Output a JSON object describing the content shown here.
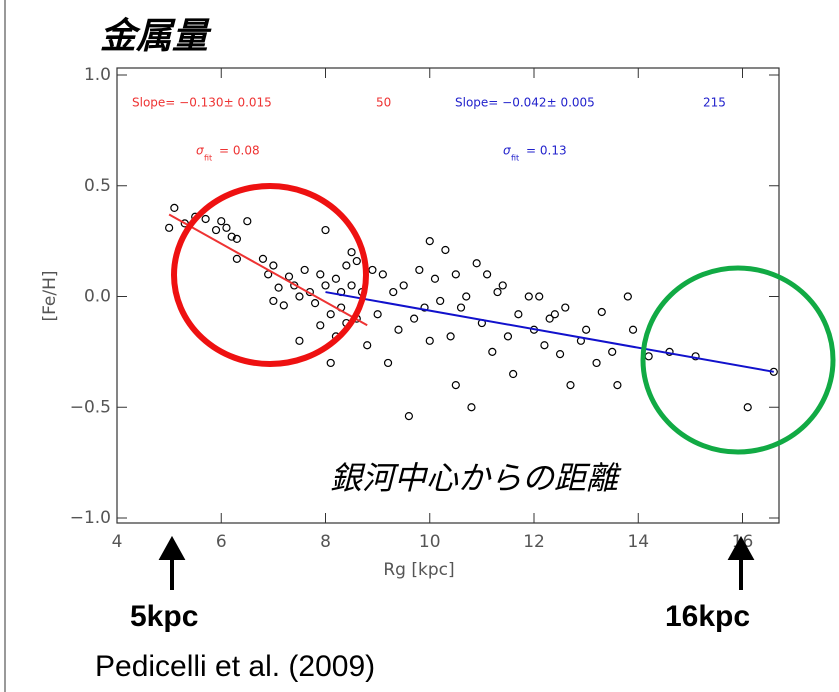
{
  "chart_data": {
    "type": "scatter",
    "title": "金属量",
    "x_label": "Rg [kpc]",
    "y_label": "[Fe/H]",
    "xlim": [
      4,
      16.7
    ],
    "ylim": [
      -1.0,
      1.0
    ],
    "xticks": [
      4,
      6,
      8,
      10,
      12,
      14,
      16
    ],
    "yticks": [
      {
        "value": 1.0,
        "label": "1.0"
      },
      {
        "value": 0.5,
        "label": "0.5"
      },
      {
        "value": 0.0,
        "label": "0.0"
      },
      {
        "value": -0.5,
        "label": "−0.5"
      },
      {
        "value": -1.0,
        "label": "−1.0"
      }
    ],
    "color": "#000000",
    "x": [
      5.0,
      5.1,
      5.3,
      5.5,
      5.7,
      5.9,
      6.0,
      6.1,
      6.2,
      6.3,
      6.3,
      6.5,
      6.8,
      6.9,
      7.0,
      7.1,
      7.0,
      7.2,
      7.3,
      7.4,
      7.5,
      7.5,
      7.6,
      7.7,
      7.8,
      7.9,
      7.9,
      8.0,
      8.0,
      8.1,
      8.1,
      8.2,
      8.2,
      8.3,
      8.3,
      8.4,
      8.4,
      8.5,
      8.5,
      8.6,
      8.6,
      8.7,
      8.8,
      8.9,
      9.0,
      9.1,
      9.2,
      9.3,
      9.4,
      9.5,
      9.6,
      9.7,
      9.8,
      9.9,
      10.0,
      10.0,
      10.1,
      10.2,
      10.3,
      10.4,
      10.5,
      10.5,
      10.6,
      10.7,
      10.8,
      10.9,
      11.0,
      11.1,
      11.2,
      11.3,
      11.4,
      11.5,
      11.6,
      11.7,
      11.9,
      12.0,
      12.1,
      12.2,
      12.3,
      12.4,
      12.5,
      12.6,
      12.7,
      12.9,
      13.0,
      13.2,
      13.3,
      13.5,
      13.6,
      13.8,
      13.9,
      14.2,
      14.6,
      15.1,
      16.1,
      16.6
    ],
    "values": [
      0.31,
      0.4,
      0.33,
      0.36,
      0.35,
      0.3,
      0.34,
      0.31,
      0.27,
      0.26,
      0.17,
      0.34,
      0.17,
      0.1,
      0.14,
      0.04,
      -0.02,
      -0.04,
      0.09,
      0.05,
      0.0,
      -0.2,
      0.12,
      0.02,
      -0.03,
      0.1,
      -0.13,
      0.3,
      0.05,
      -0.08,
      -0.3,
      0.08,
      -0.18,
      0.02,
      -0.05,
      0.14,
      -0.12,
      0.2,
      0.05,
      -0.1,
      0.16,
      0.02,
      -0.22,
      0.12,
      -0.08,
      0.1,
      -0.3,
      0.02,
      -0.15,
      0.05,
      -0.54,
      -0.1,
      0.12,
      -0.05,
      0.25,
      -0.2,
      0.08,
      -0.02,
      0.21,
      -0.18,
      0.1,
      -0.4,
      -0.05,
      0.0,
      -0.5,
      0.15,
      -0.12,
      0.1,
      -0.25,
      0.02,
      0.05,
      -0.18,
      -0.35,
      -0.08,
      0.0,
      -0.15,
      0.0,
      -0.22,
      -0.1,
      -0.08,
      -0.26,
      -0.05,
      -0.4,
      -0.2,
      -0.15,
      -0.3,
      -0.07,
      -0.25,
      -0.4,
      0.0,
      -0.15,
      -0.27,
      -0.25,
      -0.27,
      -0.5,
      -0.34
    ],
    "fit_lines": [
      {
        "color": "#ee3333",
        "x": [
          5.0,
          8.8
        ],
        "y": [
          0.37,
          -0.13
        ]
      },
      {
        "color": "#1111cc",
        "x": [
          8.0,
          16.6
        ],
        "y": [
          0.02,
          -0.34
        ]
      }
    ],
    "annotations": {
      "red_slope": "Slope= −0.130± 0.015",
      "red_n": "50",
      "red_sigma": "σ",
      "red_sigma_sub": "fit",
      "red_sigma_value": "= 0.08",
      "blue_slope": "Slope= −0.042± 0.005",
      "blue_n": "215",
      "blue_sigma": "σ",
      "blue_sigma_sub": "fit",
      "blue_sigma_value": "= 0.13",
      "distance_label": "銀河中心からの距離",
      "left_marker": "5kpc",
      "right_marker": "16kpc",
      "citation": "Pedicelli et al. (2009)"
    }
  }
}
